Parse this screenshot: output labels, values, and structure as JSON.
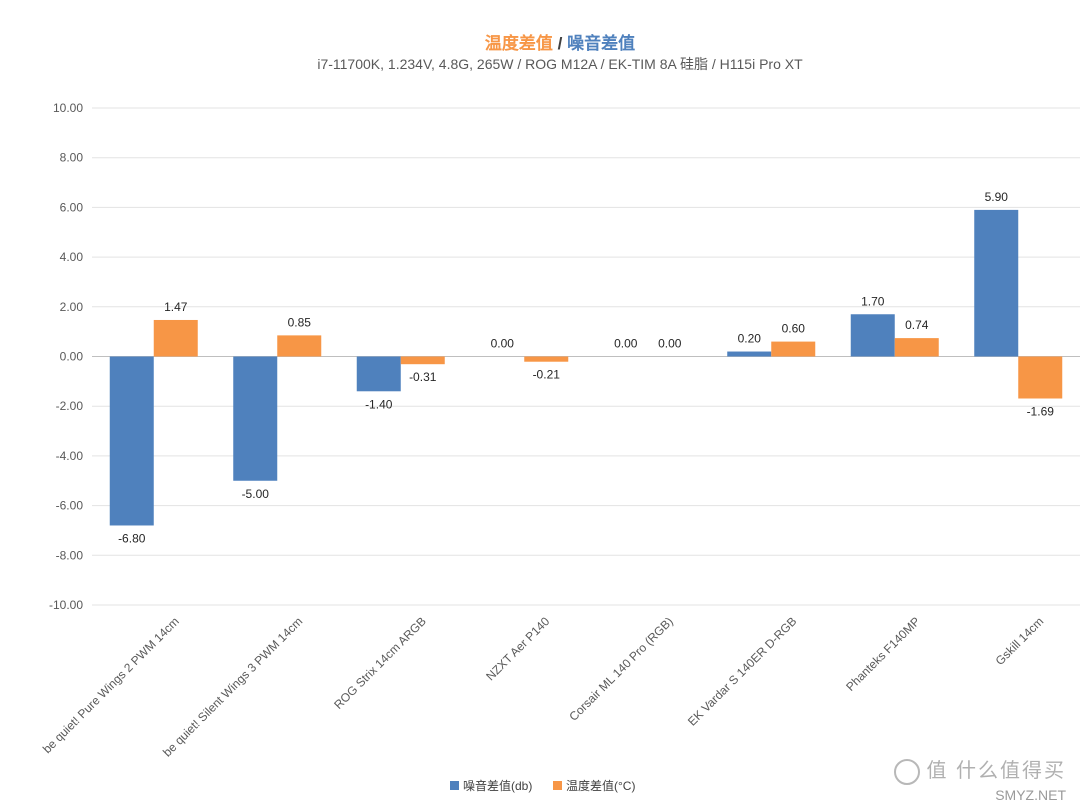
{
  "chart_data": {
    "type": "bar",
    "title_part1": "温度差值",
    "title_sep": " / ",
    "title_part2": "噪音差值",
    "subtitle": "i7-11700K, 1.234V, 4.8G, 265W / ROG M12A / EK-TIM 8A 硅脂 / H115i Pro XT",
    "categories": [
      "be quiet! Pure Wings 2 PWM 14cm",
      "be quiet! Silent Wings 3 PWM 14cm",
      "ROG Strix 14cm ARGB",
      "NZXT Aer P140",
      "Corsair ML 140 Pro (RGB)",
      "EK Vardar S 140ER D-RGB",
      "Phanteks F140MP",
      "Gskill 14cm"
    ],
    "series": [
      {
        "name": "噪音差值(db)",
        "color": "#4f81bd",
        "values": [
          -6.8,
          -5.0,
          -1.4,
          0.0,
          0.0,
          0.2,
          1.7,
          5.9
        ],
        "labels": [
          "-6.80",
          "-5.00",
          "-1.40",
          "0.00",
          "0.00",
          "0.20",
          "1.70",
          "5.90"
        ]
      },
      {
        "name": "温度差值(°C)",
        "color": "#f79646",
        "values": [
          1.47,
          0.85,
          -0.31,
          -0.21,
          0.0,
          0.6,
          0.74,
          -1.69
        ],
        "labels": [
          "1.47",
          "0.85",
          "-0.31",
          "-0.21",
          "0.00",
          "0.60",
          "0.74",
          "-1.69"
        ]
      }
    ],
    "y_ticks": [
      "10.00",
      "8.00",
      "6.00",
      "4.00",
      "2.00",
      "0.00",
      "-2.00",
      "-4.00",
      "-6.00",
      "-8.00",
      "-10.00"
    ],
    "ylim": [
      -10,
      10
    ],
    "grid": true,
    "legend_position": "bottom"
  },
  "watermark": {
    "text": "值 什么值得买",
    "site": "SMYZ.NET"
  }
}
